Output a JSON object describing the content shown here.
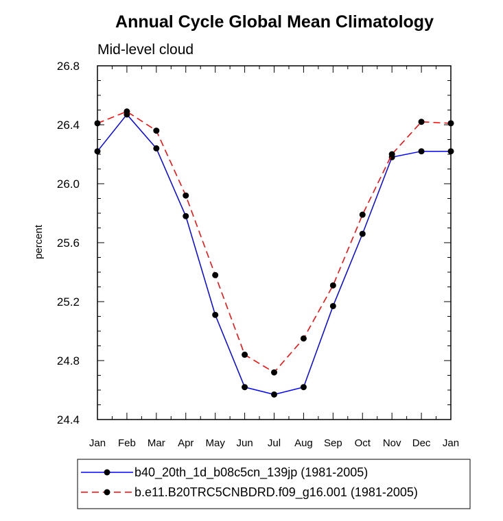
{
  "chart_data": {
    "type": "line",
    "title": "Annual Cycle Global Mean Climatology",
    "subtitle": "Mid-level cloud",
    "xlabel": "",
    "ylabel": "percent",
    "categories": [
      "Jan",
      "Feb",
      "Mar",
      "Apr",
      "May",
      "Jun",
      "Jul",
      "Aug",
      "Sep",
      "Oct",
      "Nov",
      "Dec",
      "Jan"
    ],
    "ylim": [
      24.4,
      26.8
    ],
    "yticks": [
      "24.4",
      "24.8",
      "25.2",
      "25.6",
      "26.0",
      "26.4",
      "26.8"
    ],
    "grid": false,
    "legend_position": "bottom",
    "series": [
      {
        "name": "b40_20th_1d_b08c5cn_139jp (1981-2005)",
        "color": "#0000ff",
        "dash": "solid",
        "marker": "filled-circle",
        "values": [
          26.22,
          26.47,
          26.24,
          25.78,
          25.11,
          24.62,
          24.57,
          24.62,
          25.17,
          25.66,
          26.18,
          26.22,
          26.22
        ]
      },
      {
        "name": "b.e11.B20TRC5CNBDRD.f09_g16.001 (1981-2005)",
        "color": "#ff0000",
        "dash": "dashed",
        "marker": "filled-circle",
        "values": [
          26.41,
          26.49,
          26.36,
          25.92,
          25.38,
          24.84,
          24.72,
          24.95,
          25.31,
          25.79,
          26.2,
          26.42,
          26.41
        ]
      }
    ]
  }
}
